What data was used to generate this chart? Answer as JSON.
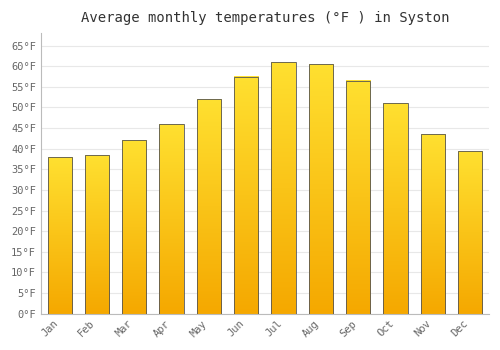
{
  "title": "Average monthly temperatures (°F ) in Syston",
  "categories": [
    "Jan",
    "Feb",
    "Mar",
    "Apr",
    "May",
    "Jun",
    "Jul",
    "Aug",
    "Sep",
    "Oct",
    "Nov",
    "Dec"
  ],
  "values": [
    38.0,
    38.5,
    42.0,
    46.0,
    52.0,
    57.5,
    61.0,
    60.5,
    56.5,
    51.0,
    43.5,
    39.5
  ],
  "bar_color_bottom": "#F5A800",
  "bar_color_top": "#FFD700",
  "bar_edge_color": "#555555",
  "ytick_values": [
    0,
    5,
    10,
    15,
    20,
    25,
    30,
    35,
    40,
    45,
    50,
    55,
    60,
    65
  ],
  "ytick_labels": [
    "0°F",
    "5°F",
    "10°F",
    "15°F",
    "20°F",
    "25°F",
    "30°F",
    "35°F",
    "40°F",
    "45°F",
    "50°F",
    "55°F",
    "60°F",
    "65°F"
  ],
  "ylim": [
    0,
    68
  ],
  "background_color": "#FFFFFF",
  "plot_bg_color": "#FFFFFF",
  "grid_color": "#E8E8E8",
  "title_fontsize": 10,
  "tick_fontsize": 7.5,
  "font_family": "monospace",
  "bar_width": 0.65
}
